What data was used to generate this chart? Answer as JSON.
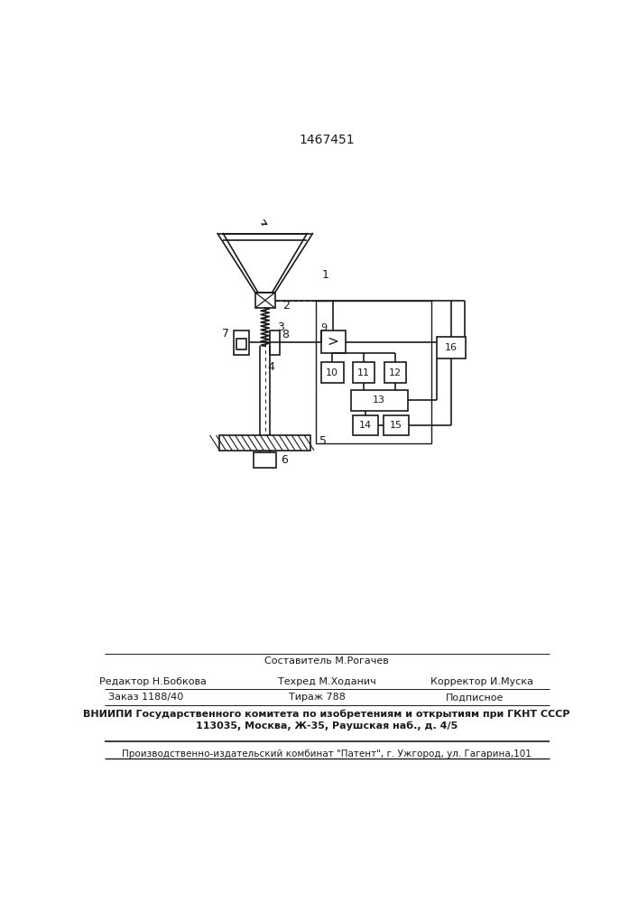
{
  "patent_number": "1467451",
  "bg_color": "#ffffff",
  "line_color": "#1a1a1a",
  "footer_texts": {
    "line1_center": "Составитель М.Рогачев",
    "line2_left": "Редактор Н.Бобкова",
    "line2_center": "Техред М.Ходанич",
    "line2_right": "Корректор И.Муска",
    "line3_left": "Заказ 1188/40",
    "line3_center": "Тираж 788",
    "line3_right": "Подписное",
    "line4": "ВНИИПИ Государственного комитета по изобретениям и открытиям при ГКНТ СССР",
    "line5": "113035, Москва, Ж-35, Раушская наб., д. 4/5",
    "line6": "Производственно-издательский комбинат \"Патент\", г. Ужгород, ул. Гагарина,101"
  }
}
